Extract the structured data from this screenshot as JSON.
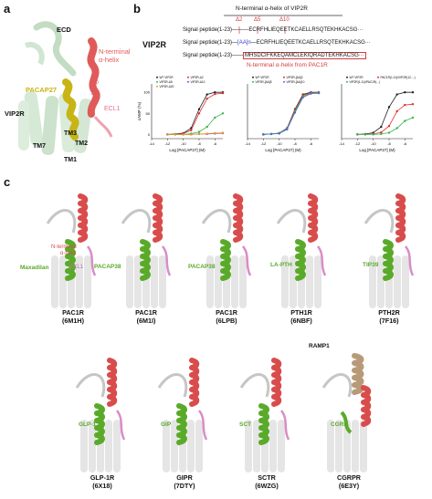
{
  "panel_a": {
    "letter": "a",
    "labels": {
      "ecd": "ECD",
      "nterm1": "N-terminal",
      "nterm2": "α-helix",
      "pacap": "PACAP27",
      "vip2r": "VIP2R",
      "ecl1": "ECL1",
      "d10": "Δ10",
      "d5": "Δ5",
      "d2": "Δ2",
      "tm3": "TM3",
      "tm7": "TM7",
      "tm2": "TM2",
      "tm1": "TM1"
    },
    "colors": {
      "helix": "#e05a5a",
      "peptide": "#c8b414",
      "receptor": "#c9dfc9"
    }
  },
  "panel_b": {
    "letter": "b",
    "header": "N-terminal α-helix of VIP2R",
    "receptor": "VIP2R",
    "deletions": [
      "Δ2",
      "Δ5",
      "Δ10"
    ],
    "seq_rows": [
      {
        "prefix": "Signal peptide(1-23)",
        "seq": "ECRFHLIEQEETKCAELLRSQTEKHKACSG···"
      },
      {
        "prefix": "Signal peptide(1-23)",
        "aa": "[AA]n",
        "seq": "ECRFHLIEQEETKCAELLRSQTEKHKACSG···"
      },
      {
        "prefix": "Signal peptide(1-23)",
        "seq": "MHSDCIFKKEQAMCLEKIQRADTEKHKACSG···"
      }
    ],
    "pac1r_note": "N-terminal α-helix from PAC1R",
    "colors": {
      "accent": "#d23c3c",
      "aa": "#3a3ad0"
    }
  },
  "chart_data": [
    {
      "type": "line",
      "xlabel": "Log [PACAP27] (M)",
      "ylabel": "cAMP (%)",
      "xlim": [
        -14,
        -5
      ],
      "ylim": [
        -10,
        120
      ],
      "x_ticks": [
        "-14",
        "-12",
        "-10",
        "-8",
        "-6"
      ],
      "y_ticks": [
        "0",
        "50",
        "100"
      ],
      "legend": [
        "WT VIP2R",
        "VIP2R-Δ2",
        "VIP2R-Δ5",
        "VIP2R-Δ10",
        "VIP2R-Δ20"
      ],
      "x": [
        -12,
        -11,
        -10,
        -9,
        -8,
        -7,
        -6,
        -5
      ],
      "series": [
        {
          "name": "WT VIP2R",
          "color": "#222222",
          "values": [
            0,
            1,
            3,
            15,
            60,
            95,
            100,
            100
          ]
        },
        {
          "name": "VIP2R-Δ2",
          "color": "#e03030",
          "values": [
            0,
            0,
            2,
            10,
            50,
            85,
            96,
            98
          ]
        },
        {
          "name": "VIP2R-Δ5",
          "color": "#39b54a",
          "values": [
            0,
            0,
            0,
            2,
            6,
            18,
            40,
            50
          ]
        },
        {
          "name": "VIP2R-Δ10",
          "color": "#9b3dc8",
          "values": [
            0,
            0,
            0,
            0,
            1,
            1,
            2,
            3
          ]
        },
        {
          "name": "VIP2R-Δ20",
          "color": "#e0a020",
          "values": [
            0,
            0,
            0,
            0,
            1,
            2,
            3,
            4
          ]
        }
      ]
    },
    {
      "type": "line",
      "xlabel": "Log [PACAP27] (M)",
      "xlim": [
        -14,
        -5
      ],
      "ylim": [
        -10,
        120
      ],
      "x_ticks": [
        "-14",
        "-12",
        "-10",
        "-8",
        "-6"
      ],
      "legend": [
        "WT VIP2R",
        "VIP2R-[AA]2",
        "VIP2R-[AA]5",
        "VIP2R-[AA]10"
      ],
      "x": [
        -12,
        -11,
        -10,
        -9,
        -8,
        -7,
        -6,
        -5
      ],
      "series": [
        {
          "name": "WT VIP2R",
          "color": "#222222",
          "values": [
            0,
            1,
            3,
            15,
            60,
            95,
            100,
            100
          ]
        },
        {
          "name": "VIP2R-[AA]2",
          "color": "#e03030",
          "values": [
            0,
            1,
            3,
            14,
            58,
            93,
            99,
            100
          ]
        },
        {
          "name": "VIP2R-[AA]5",
          "color": "#39b54a",
          "values": [
            0,
            1,
            3,
            13,
            55,
            90,
            98,
            99
          ]
        },
        {
          "name": "VIP2R-[AA]10",
          "color": "#4a6bd0",
          "values": [
            0,
            1,
            2,
            12,
            52,
            88,
            97,
            98
          ]
        }
      ]
    },
    {
      "type": "line",
      "xlabel": "Log [PACAP27] (M)",
      "xlim": [
        -14,
        -5
      ],
      "ylim": [
        -10,
        120
      ],
      "x_ticks": [
        "-14",
        "-12",
        "-10",
        "-8",
        "-6"
      ],
      "legend": [
        "WT VIP2R",
        "PAC1R(1-11)/VIP2R(12-...)",
        "VIP2R(1-11)/PAC1R(...)"
      ],
      "x": [
        -12,
        -11,
        -10,
        -9,
        -8,
        -7,
        -6,
        -5
      ],
      "series": [
        {
          "name": "WT VIP2R",
          "color": "#222222",
          "values": [
            0,
            1,
            4,
            18,
            65,
            95,
            100,
            100
          ]
        },
        {
          "name": "PAC1R(1-11)/VIP2R(12-...)",
          "color": "#e03030",
          "values": [
            0,
            0,
            1,
            5,
            20,
            55,
            70,
            72
          ]
        },
        {
          "name": "VIP2R(1-11)/PAC1R(...)",
          "color": "#39b54a",
          "values": [
            0,
            0,
            0,
            1,
            4,
            15,
            32,
            40
          ]
        }
      ]
    }
  ],
  "panel_c": {
    "letter": "c",
    "structures": [
      {
        "peptide": "Maxadilan",
        "receptor": "PAC1R",
        "pdb": "(6M1H)",
        "extra1": "N-terminal",
        "extra2": "α-helix",
        "extra3": "ECL1"
      },
      {
        "peptide": "PACAP38",
        "receptor": "PAC1R",
        "pdb": "(6M1I)"
      },
      {
        "peptide": "PACAP38",
        "receptor": "PAC1R",
        "pdb": "(6LPB)"
      },
      {
        "peptide": "LA-PTH",
        "receptor": "PTH1R",
        "pdb": "(6NBF)"
      },
      {
        "peptide": "TIP39",
        "receptor": "PTH2R",
        "pdb": "(7F16)"
      },
      {
        "peptide": "GLP-1",
        "receptor": "GLP-1R",
        "pdb": "(6X18)"
      },
      {
        "peptide": "GIP",
        "receptor": "GIPR",
        "pdb": "(7DTY)"
      },
      {
        "peptide": "SCT",
        "receptor": "SCTR",
        "pdb": "(6WZG)"
      },
      {
        "peptide": "CGRP",
        "receptor": "CGRPR",
        "pdb": "(6E3Y)",
        "extra1": "RAMP1"
      }
    ],
    "colors": {
      "helix": "#d94c4c",
      "peptide": "#5aaa2a",
      "ecl": "#d98cc8",
      "receptor": "#d0d0d0",
      "ramp": "#b89a78"
    }
  }
}
